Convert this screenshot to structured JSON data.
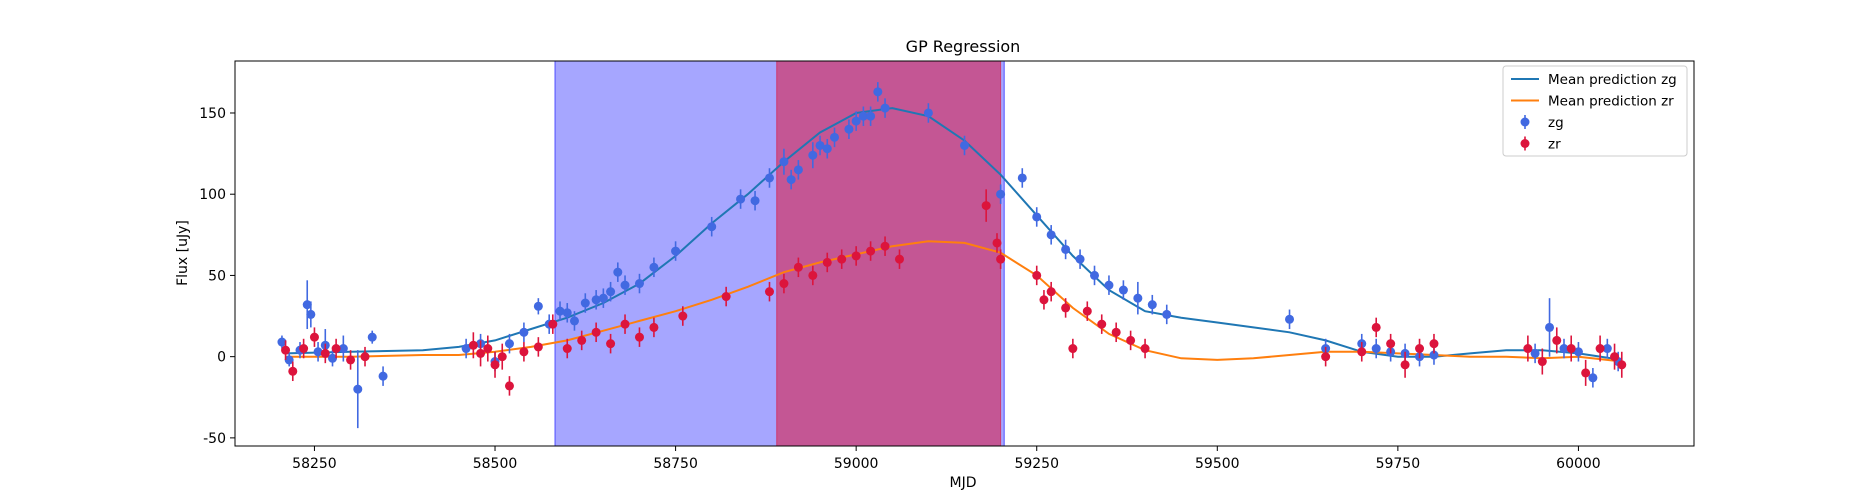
{
  "chart_data": {
    "type": "scatter",
    "title": "GP Regression",
    "xlabel": "MJD",
    "ylabel": "Flux [uJy]",
    "xlim": [
      58140,
      60160
    ],
    "ylim": [
      -55,
      182
    ],
    "xticks": [
      58250,
      58500,
      58750,
      59000,
      59250,
      59500,
      59750,
      60000
    ],
    "yticks": [
      -50,
      0,
      50,
      100,
      150
    ],
    "grid": false,
    "legend_position": "top-right",
    "shaded_regions": [
      {
        "x0": 58583,
        "x1": 59205,
        "color": "#0000ff",
        "opacity": 0.35
      },
      {
        "x0": 58890,
        "x1": 59200,
        "color": "#dc143c",
        "opacity": 0.55
      }
    ],
    "series": [
      {
        "name": "Mean prediction zg",
        "kind": "line",
        "color": "#1f77b4",
        "x": [
          58210,
          58300,
          58400,
          58450,
          58500,
          58550,
          58600,
          58650,
          58700,
          58750,
          58800,
          58850,
          58900,
          58950,
          59000,
          59050,
          59100,
          59150,
          59200,
          59250,
          59300,
          59350,
          59400,
          59450,
          59500,
          59550,
          59600,
          59650,
          59700,
          59750,
          59800,
          59850,
          59900,
          59950,
          60000,
          60060
        ],
        "y": [
          2,
          3,
          4,
          6,
          10,
          17,
          24,
          33,
          45,
          62,
          82,
          100,
          120,
          138,
          150,
          153,
          148,
          133,
          112,
          87,
          62,
          41,
          28,
          24,
          21,
          18,
          15,
          10,
          3,
          0,
          0,
          2,
          4,
          4,
          2,
          -2
        ]
      },
      {
        "name": "Mean prediction zr",
        "kind": "line",
        "color": "#ff7f0e",
        "x": [
          58210,
          58300,
          58400,
          58450,
          58500,
          58550,
          58600,
          58650,
          58700,
          58750,
          58800,
          58850,
          58900,
          58950,
          59000,
          59050,
          59100,
          59150,
          59200,
          59250,
          59300,
          59350,
          59400,
          59450,
          59500,
          59550,
          59600,
          59650,
          59700,
          59750,
          59800,
          59850,
          59900,
          59950,
          60000,
          60060
        ],
        "y": [
          0,
          0,
          1,
          1,
          3,
          6,
          10,
          16,
          22,
          28,
          35,
          43,
          52,
          58,
          63,
          68,
          71,
          70,
          64,
          50,
          30,
          14,
          4,
          -1,
          -2,
          -1,
          1,
          3,
          3,
          2,
          1,
          0,
          0,
          -1,
          0,
          -3
        ]
      },
      {
        "name": "zg",
        "kind": "errorbar",
        "color": "#4169e1",
        "x": [
          58205,
          58215,
          58230,
          58240,
          58245,
          58255,
          58265,
          58275,
          58290,
          58310,
          58330,
          58345,
          58460,
          58480,
          58500,
          58520,
          58540,
          58560,
          58575,
          58590,
          58600,
          58610,
          58625,
          58640,
          58650,
          58660,
          58670,
          58680,
          58700,
          58720,
          58750,
          58800,
          58840,
          58860,
          58880,
          58900,
          58910,
          58920,
          58940,
          58950,
          58960,
          58970,
          58990,
          59000,
          59010,
          59020,
          59030,
          59040,
          59100,
          59150,
          59200,
          59230,
          59250,
          59270,
          59290,
          59310,
          59330,
          59350,
          59370,
          59390,
          59410,
          59430,
          59600,
          59650,
          59700,
          59720,
          59740,
          59760,
          59780,
          59800,
          59940,
          59960,
          59980,
          60000,
          60020,
          60040,
          60055
        ],
        "y": [
          9,
          -2,
          4,
          32,
          26,
          3,
          7,
          -1,
          5,
          -20,
          12,
          -12,
          5,
          8,
          -3,
          8,
          15,
          31,
          20,
          28,
          27,
          22,
          33,
          35,
          36,
          40,
          52,
          44,
          45,
          55,
          65,
          80,
          97,
          96,
          110,
          120,
          109,
          115,
          124,
          130,
          128,
          135,
          140,
          145,
          148,
          148,
          163,
          153,
          150,
          130,
          100,
          110,
          86,
          75,
          66,
          60,
          50,
          44,
          41,
          36,
          32,
          26,
          23,
          5,
          8,
          5,
          3,
          2,
          0,
          1,
          2,
          18,
          5,
          3,
          -13,
          5,
          -3
        ],
        "err": [
          4,
          4,
          5,
          15,
          8,
          6,
          10,
          5,
          8,
          24,
          4,
          6,
          6,
          6,
          6,
          6,
          6,
          5,
          6,
          6,
          6,
          6,
          6,
          6,
          6,
          6,
          6,
          6,
          6,
          6,
          6,
          6,
          6,
          6,
          6,
          8,
          6,
          6,
          8,
          6,
          6,
          6,
          6,
          6,
          6,
          6,
          6,
          6,
          6,
          6,
          6,
          6,
          6,
          6,
          6,
          6,
          6,
          6,
          6,
          10,
          6,
          6,
          6,
          6,
          6,
          6,
          6,
          6,
          6,
          6,
          6,
          18,
          6,
          6,
          6,
          6,
          6
        ]
      },
      {
        "name": "zr",
        "kind": "errorbar",
        "color": "#dc143c",
        "x": [
          58210,
          58220,
          58235,
          58250,
          58265,
          58280,
          58300,
          58320,
          58470,
          58480,
          58490,
          58500,
          58510,
          58520,
          58540,
          58560,
          58580,
          58600,
          58620,
          58640,
          58660,
          58680,
          58700,
          58720,
          58760,
          58820,
          58880,
          58900,
          58920,
          58940,
          58960,
          58980,
          59000,
          59020,
          59040,
          59060,
          59180,
          59195,
          59200,
          59250,
          59260,
          59270,
          59290,
          59300,
          59320,
          59340,
          59360,
          59380,
          59400,
          59650,
          59700,
          59720,
          59740,
          59760,
          59780,
          59800,
          59930,
          59950,
          59970,
          59990,
          60010,
          60030,
          60050,
          60060
        ],
        "y": [
          4,
          -9,
          5,
          12,
          2,
          5,
          -2,
          0,
          7,
          2,
          5,
          -5,
          0,
          -18,
          3,
          6,
          20,
          5,
          10,
          15,
          8,
          20,
          12,
          18,
          25,
          37,
          40,
          45,
          55,
          50,
          58,
          60,
          62,
          65,
          68,
          60,
          93,
          70,
          60,
          50,
          35,
          40,
          30,
          5,
          28,
          20,
          15,
          10,
          5,
          0,
          3,
          18,
          8,
          -5,
          5,
          8,
          5,
          -3,
          10,
          5,
          -10,
          5,
          0,
          -5
        ],
        "err": [
          6,
          6,
          6,
          6,
          6,
          6,
          6,
          6,
          8,
          8,
          8,
          8,
          8,
          6,
          6,
          6,
          6,
          6,
          6,
          6,
          6,
          6,
          6,
          6,
          6,
          6,
          6,
          6,
          6,
          6,
          6,
          6,
          6,
          6,
          6,
          6,
          10,
          6,
          6,
          6,
          6,
          6,
          6,
          6,
          6,
          6,
          6,
          6,
          6,
          6,
          6,
          6,
          6,
          8,
          6,
          6,
          8,
          8,
          8,
          8,
          8,
          8,
          8,
          8
        ]
      }
    ]
  }
}
